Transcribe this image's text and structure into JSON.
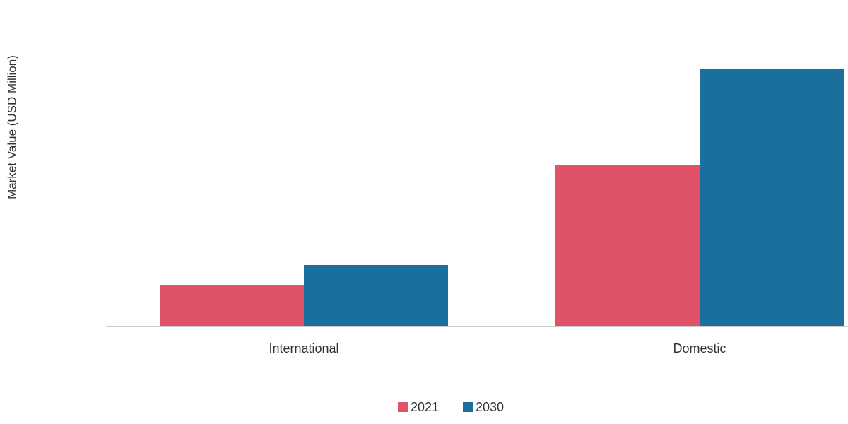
{
  "chart_data": {
    "type": "bar",
    "y_label": "Market Value (USD Million)",
    "categories": [
      "International",
      "Domestic"
    ],
    "series": [
      {
        "name": "2021",
        "color": "#e05268",
        "values": [
          58,
          229
        ]
      },
      {
        "name": "2030",
        "color": "#1a6f9e",
        "values": [
          87,
          365
        ]
      }
    ],
    "ylim": [
      0,
      380
    ]
  }
}
